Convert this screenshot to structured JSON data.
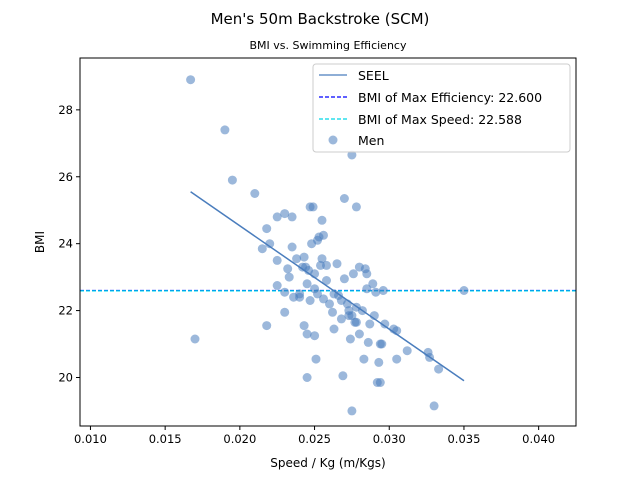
{
  "chart_data": {
    "type": "scatter",
    "title": "Men's 50m Backstroke (SCM)",
    "subtitle": "BMI vs. Swimming Efficiency",
    "xlabel": "Speed / Kg (m/Kgs)",
    "ylabel": "BMI",
    "xlim": [
      0.0093,
      0.0425
    ],
    "ylim": [
      18.55,
      29.55
    ],
    "x_ticks": [
      0.01,
      0.015,
      0.02,
      0.025,
      0.03,
      0.035,
      0.04
    ],
    "x_tick_labels": [
      "0.010",
      "0.015",
      "0.020",
      "0.025",
      "0.030",
      "0.035",
      "0.040"
    ],
    "y_ticks": [
      20,
      22,
      24,
      26,
      28
    ],
    "y_tick_labels": [
      "20",
      "22",
      "24",
      "26",
      "28"
    ],
    "grid": false,
    "legend_position": "top-right",
    "legend": {
      "seel": "SEEL",
      "max_eff": "BMI of Max Efficiency: 22.600",
      "max_speed": "BMI of Max Speed: 22.588",
      "men": "Men"
    },
    "colors": {
      "points": "#4a7dbd",
      "seel": "#4a7dbd",
      "max_eff": "#0000ff",
      "max_speed": "#00d8e8"
    },
    "seel_line": {
      "x": [
        0.0167,
        0.035
      ],
      "y": [
        25.55,
        19.9
      ]
    },
    "hlines": [
      {
        "name": "BMI of Max Efficiency: 22.600",
        "y": 22.6
      },
      {
        "name": "BMI of Max Speed: 22.588",
        "y": 22.588
      }
    ],
    "series": [
      {
        "name": "Men",
        "points": [
          [
            0.0167,
            28.9
          ],
          [
            0.019,
            27.4
          ],
          [
            0.0195,
            25.9
          ],
          [
            0.021,
            25.5
          ],
          [
            0.017,
            21.15
          ],
          [
            0.0215,
            23.85
          ],
          [
            0.0218,
            24.45
          ],
          [
            0.022,
            24.0
          ],
          [
            0.0218,
            21.55
          ],
          [
            0.0225,
            24.8
          ],
          [
            0.0225,
            23.5
          ],
          [
            0.023,
            24.9
          ],
          [
            0.0232,
            23.25
          ],
          [
            0.0233,
            23.0
          ],
          [
            0.0235,
            24.8
          ],
          [
            0.0235,
            23.9
          ],
          [
            0.0225,
            22.75
          ],
          [
            0.023,
            22.55
          ],
          [
            0.0236,
            22.4
          ],
          [
            0.0238,
            23.55
          ],
          [
            0.024,
            22.5
          ],
          [
            0.0242,
            23.3
          ],
          [
            0.0243,
            23.6
          ],
          [
            0.0245,
            22.8
          ],
          [
            0.0246,
            23.2
          ],
          [
            0.0247,
            25.1
          ],
          [
            0.0249,
            25.1
          ],
          [
            0.0248,
            24.0
          ],
          [
            0.023,
            21.95
          ],
          [
            0.0243,
            21.55
          ],
          [
            0.0245,
            21.3
          ],
          [
            0.0247,
            22.3
          ],
          [
            0.025,
            21.25
          ],
          [
            0.025,
            23.1
          ],
          [
            0.0252,
            24.1
          ],
          [
            0.0253,
            24.2
          ],
          [
            0.0255,
            24.7
          ],
          [
            0.0256,
            24.25
          ],
          [
            0.0255,
            23.55
          ],
          [
            0.0254,
            23.35
          ],
          [
            0.025,
            22.65
          ],
          [
            0.0252,
            22.5
          ],
          [
            0.0256,
            22.35
          ],
          [
            0.0258,
            22.9
          ],
          [
            0.026,
            22.2
          ],
          [
            0.0262,
            21.95
          ],
          [
            0.0263,
            21.45
          ],
          [
            0.0245,
            20.0
          ],
          [
            0.0251,
            20.55
          ],
          [
            0.0265,
            23.4
          ],
          [
            0.0266,
            22.45
          ],
          [
            0.0268,
            22.3
          ],
          [
            0.0268,
            21.75
          ],
          [
            0.027,
            22.95
          ],
          [
            0.027,
            25.35
          ],
          [
            0.0272,
            22.2
          ],
          [
            0.0273,
            21.85
          ],
          [
            0.0273,
            22.0
          ],
          [
            0.0274,
            21.15
          ],
          [
            0.0275,
            21.85
          ],
          [
            0.0276,
            23.1
          ],
          [
            0.0277,
            21.65
          ],
          [
            0.0278,
            22.1
          ],
          [
            0.0278,
            25.1
          ],
          [
            0.0275,
            26.65
          ],
          [
            0.0278,
            21.65
          ],
          [
            0.028,
            21.3
          ],
          [
            0.028,
            23.3
          ],
          [
            0.0282,
            22.0
          ],
          [
            0.0284,
            23.25
          ],
          [
            0.0283,
            20.55
          ],
          [
            0.0285,
            23.1
          ],
          [
            0.0285,
            22.65
          ],
          [
            0.0286,
            21.05
          ],
          [
            0.0287,
            21.6
          ],
          [
            0.0289,
            22.8
          ],
          [
            0.029,
            21.85
          ],
          [
            0.0291,
            22.55
          ],
          [
            0.0292,
            19.85
          ],
          [
            0.0293,
            20.45
          ],
          [
            0.0294,
            19.85
          ],
          [
            0.0294,
            21.0
          ],
          [
            0.0295,
            21.0
          ],
          [
            0.0296,
            22.6
          ],
          [
            0.0297,
            21.6
          ],
          [
            0.0303,
            21.45
          ],
          [
            0.0305,
            21.4
          ],
          [
            0.0305,
            20.55
          ],
          [
            0.0312,
            20.8
          ],
          [
            0.0326,
            20.75
          ],
          [
            0.0327,
            20.6
          ],
          [
            0.033,
            19.15
          ],
          [
            0.0333,
            20.25
          ],
          [
            0.035,
            22.6
          ],
          [
            0.0275,
            19.0
          ],
          [
            0.0269,
            20.05
          ],
          [
            0.0263,
            22.5
          ],
          [
            0.024,
            22.4
          ],
          [
            0.0258,
            23.35
          ],
          [
            0.0244,
            23.3
          ]
        ]
      }
    ]
  }
}
